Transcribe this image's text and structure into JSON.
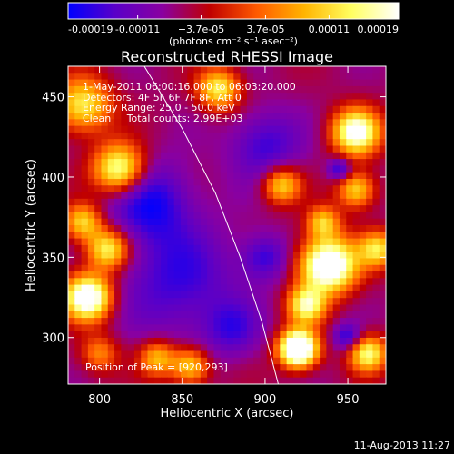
{
  "chart_data": {
    "type": "heatmap",
    "title": "Reconstructed RHESSI Image",
    "xlabel": "Heliocentric X (arcsec)",
    "ylabel": "Heliocentric Y (arcsec)",
    "xlim": [
      781,
      973
    ],
    "ylim": [
      271,
      469
    ],
    "xticks": [
      800,
      850,
      900,
      950
    ],
    "yticks": [
      300,
      350,
      400,
      450
    ],
    "colorbar": {
      "min": -0.00019,
      "max": 0.00019,
      "tick_values": [
        -0.00019,
        -0.00011,
        -3.7e-05,
        3.7e-05,
        0.00011,
        0.00019
      ],
      "tick_labels": [
        "-0.00019",
        "-0.00011",
        "−3.7e-05",
        "3.7e-05",
        "0.00011",
        "0.00019"
      ],
      "units": "(photons cm⁻² s⁻¹ asec⁻²)",
      "colormap": [
        "#0000ff",
        "#5a00c8",
        "#8a00a0",
        "#c00000",
        "#ff5a00",
        "#ffb400",
        "#ffff60",
        "#ffffff"
      ]
    },
    "annotations": {
      "time": "1-May-2011 06:00:16.000 to 06:03:20.000",
      "detectors": "Detectors: 4F 5F 6F 7F 8F, Att 0",
      "energy": "Energy Range: 25.0 - 50.0 keV",
      "clean": "Clean     Total counts: 2.99E+03",
      "peak": "Position of Peak = [920,293]"
    },
    "peak": [
      920,
      293
    ],
    "limb_curve": [
      [
        827,
        469
      ],
      [
        850,
        430
      ],
      [
        870,
        390
      ],
      [
        885,
        350
      ],
      [
        898,
        310
      ],
      [
        908,
        271
      ]
    ],
    "sources": [
      {
        "x": 920,
        "y": 293,
        "amp": 1.0,
        "sigma": 8
      },
      {
        "x": 938,
        "y": 345,
        "amp": 0.85,
        "sigma": 12
      },
      {
        "x": 925,
        "y": 320,
        "amp": 0.55,
        "sigma": 8
      },
      {
        "x": 793,
        "y": 325,
        "amp": 0.8,
        "sigma": 10
      },
      {
        "x": 805,
        "y": 355,
        "amp": 0.55,
        "sigma": 9
      },
      {
        "x": 790,
        "y": 372,
        "amp": 0.45,
        "sigma": 8
      },
      {
        "x": 812,
        "y": 405,
        "amp": 0.65,
        "sigma": 11
      },
      {
        "x": 790,
        "y": 445,
        "amp": 0.5,
        "sigma": 12
      },
      {
        "x": 872,
        "y": 455,
        "amp": 0.5,
        "sigma": 9
      },
      {
        "x": 955,
        "y": 428,
        "amp": 0.7,
        "sigma": 10
      },
      {
        "x": 910,
        "y": 395,
        "amp": 0.45,
        "sigma": 8
      },
      {
        "x": 935,
        "y": 372,
        "amp": 0.4,
        "sigma": 7
      },
      {
        "x": 955,
        "y": 392,
        "amp": 0.45,
        "sigma": 8
      },
      {
        "x": 855,
        "y": 282,
        "amp": 0.45,
        "sigma": 8
      },
      {
        "x": 835,
        "y": 287,
        "amp": 0.4,
        "sigma": 8
      },
      {
        "x": 962,
        "y": 290,
        "amp": 0.55,
        "sigma": 8
      },
      {
        "x": 968,
        "y": 355,
        "amp": 0.45,
        "sigma": 8
      },
      {
        "x": 800,
        "y": 290,
        "amp": 0.3,
        "sigma": 8
      },
      {
        "x": 848,
        "y": 335,
        "amp": -0.25,
        "sigma": 25
      },
      {
        "x": 830,
        "y": 385,
        "amp": -0.3,
        "sigma": 18
      },
      {
        "x": 900,
        "y": 420,
        "amp": -0.25,
        "sigma": 15
      },
      {
        "x": 880,
        "y": 305,
        "amp": -0.2,
        "sigma": 12
      },
      {
        "x": 945,
        "y": 405,
        "amp": -0.3,
        "sigma": 5
      },
      {
        "x": 950,
        "y": 300,
        "amp": -0.3,
        "sigma": 6
      },
      {
        "x": 900,
        "y": 350,
        "amp": -0.25,
        "sigma": 10
      }
    ]
  },
  "footer": {
    "timestamp": "11-Aug-2013 11:27"
  }
}
